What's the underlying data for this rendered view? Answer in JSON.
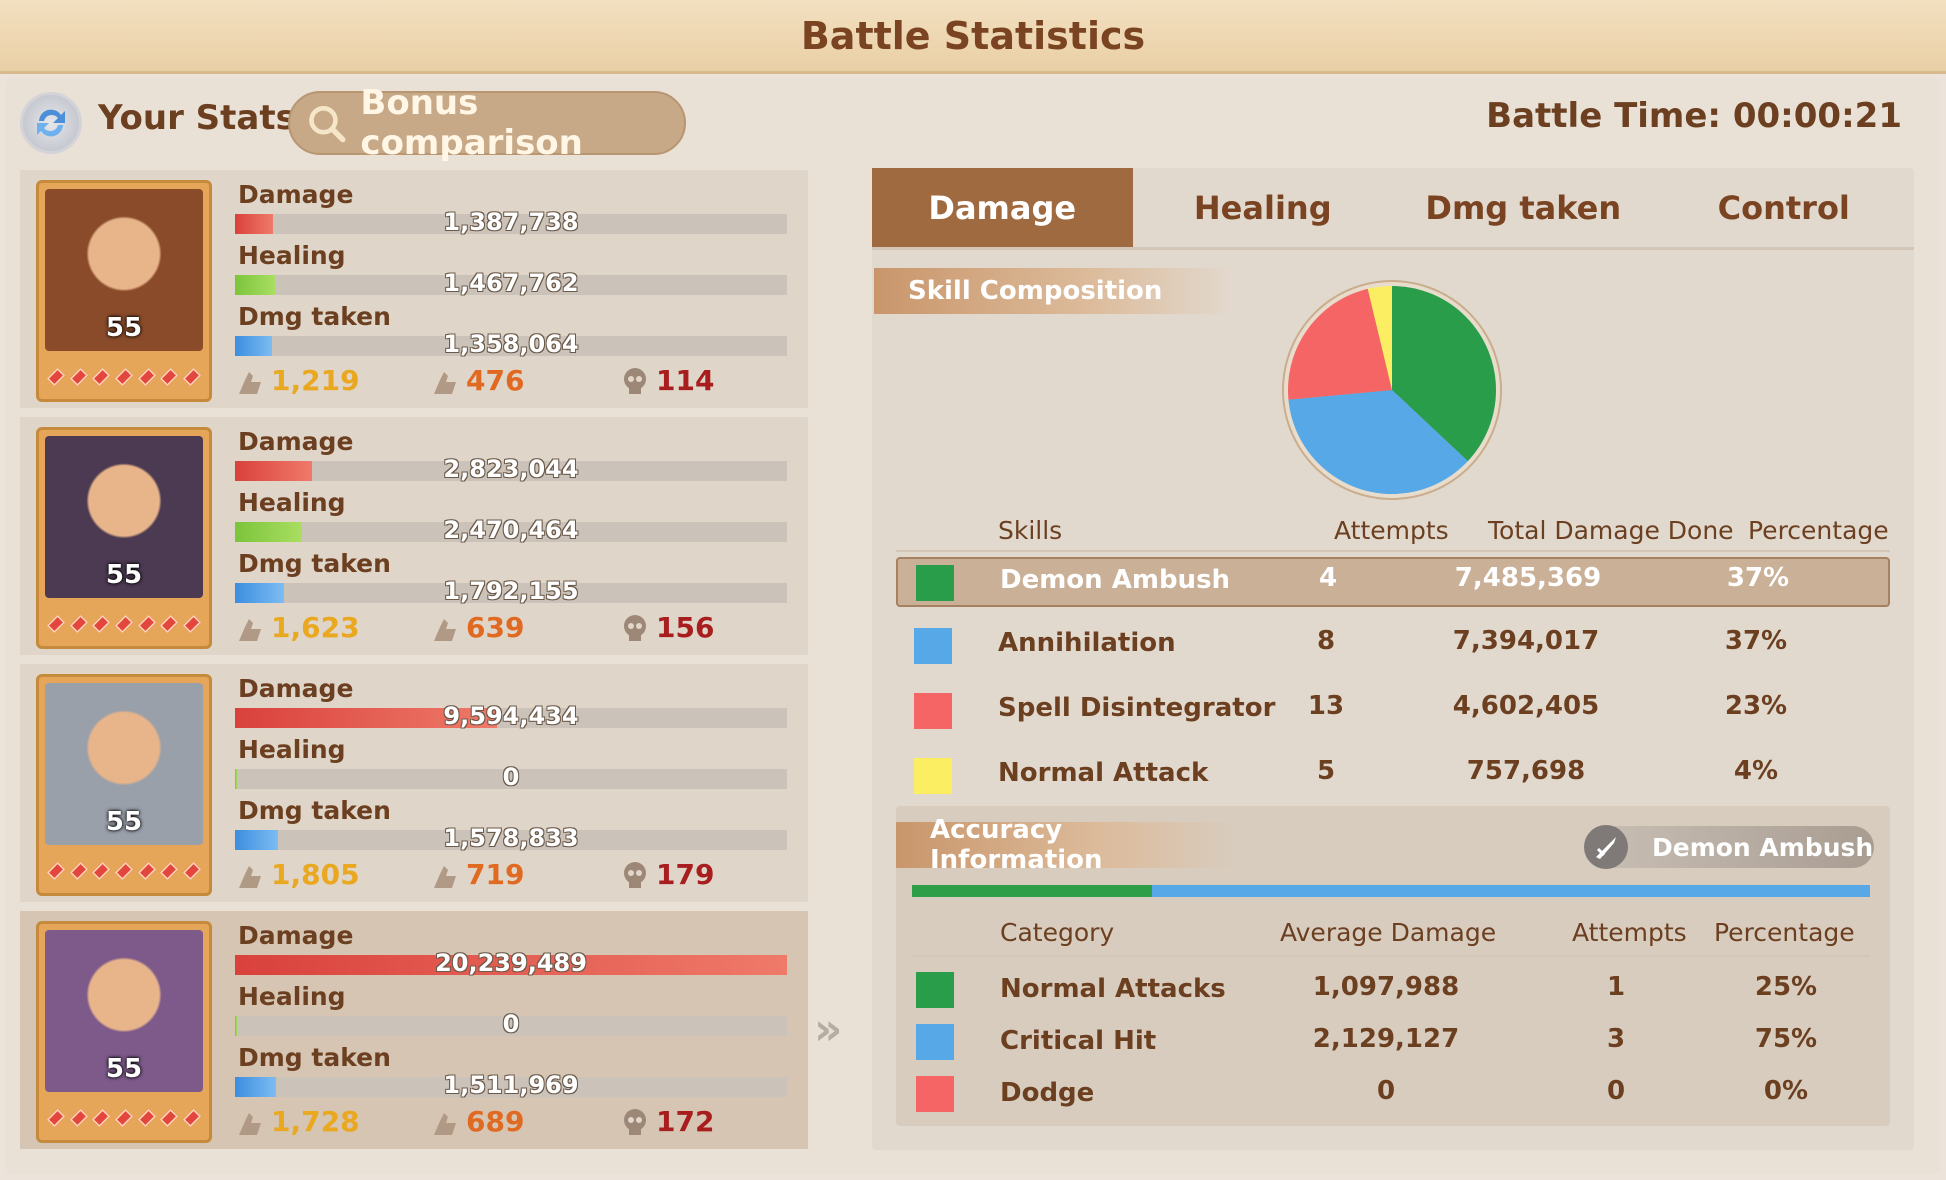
{
  "title": "Battle Statistics",
  "header": {
    "your_stats": "Your Stats",
    "bonus_comparison": "Bonus comparison",
    "battle_time": "Battle Time: 00:00:21"
  },
  "heroes": [
    {
      "level": "55",
      "damage": "1,387,738",
      "damage_frac": 0.069,
      "healing": "1,467,762",
      "healing_frac": 0.073,
      "taken": "1,358,064",
      "taken_frac": 0.067,
      "kills": "1,219",
      "assists": "476",
      "deaths": "114",
      "portrait_color": "#8a4b2a"
    },
    {
      "level": "55",
      "damage": "2,823,044",
      "damage_frac": 0.139,
      "healing": "2,470,464",
      "healing_frac": 0.122,
      "taken": "1,792,155",
      "taken_frac": 0.089,
      "kills": "1,623",
      "assists": "639",
      "deaths": "156",
      "portrait_color": "#4b3a52"
    },
    {
      "level": "55",
      "damage": "9,594,434",
      "damage_frac": 0.474,
      "healing": "0",
      "healing_frac": 0.004,
      "taken": "1,578,833",
      "taken_frac": 0.078,
      "kills": "1,805",
      "assists": "719",
      "deaths": "179",
      "portrait_color": "#9aa0aa"
    },
    {
      "level": "55",
      "damage": "20,239,489",
      "damage_frac": 1.0,
      "healing": "0",
      "healing_frac": 0.004,
      "taken": "1,511,969",
      "taken_frac": 0.075,
      "kills": "1,728",
      "assists": "689",
      "deaths": "172",
      "portrait_color": "#7d5a8a"
    }
  ],
  "labels": {
    "damage": "Damage",
    "healing": "Healing",
    "taken": "Dmg taken"
  },
  "tabs": [
    "Damage",
    "Healing",
    "Dmg taken",
    "Control"
  ],
  "skill_section": {
    "title": "Skill Composition",
    "headers": [
      "Skills",
      "Attempts",
      "Total Damage Done",
      "Percentage"
    ],
    "rows": [
      {
        "name": "Demon Ambush",
        "attempts": "4",
        "total": "7,485,369",
        "pct": "37%",
        "color": "#2a9d4b",
        "value": 7485369
      },
      {
        "name": "Annihilation",
        "attempts": "8",
        "total": "7,394,017",
        "pct": "37%",
        "color": "#56a8e6",
        "value": 7394017
      },
      {
        "name": "Spell Disintegrator",
        "attempts": "13",
        "total": "4,602,405",
        "pct": "23%",
        "color": "#f56565",
        "value": 4602405
      },
      {
        "name": "Normal Attack",
        "attempts": "5",
        "total": "757,698",
        "pct": "4%",
        "color": "#fbee62",
        "value": 757698
      }
    ]
  },
  "accuracy": {
    "title": "Accuracy Information",
    "selected_skill": "Demon Ambush",
    "bar_frac": 0.25,
    "headers": [
      "Category",
      "Average Damage",
      "Attempts",
      "Percentage"
    ],
    "rows": [
      {
        "name": "Normal Attacks",
        "avg": "1,097,988",
        "attempts": "1",
        "pct": "25%",
        "color": "#2a9d4b"
      },
      {
        "name": "Critical Hit",
        "avg": "2,129,127",
        "attempts": "3",
        "pct": "75%",
        "color": "#56a8e6"
      },
      {
        "name": "Dodge",
        "avg": "0",
        "attempts": "0",
        "pct": "0%",
        "color": "#f56565"
      }
    ]
  }
}
